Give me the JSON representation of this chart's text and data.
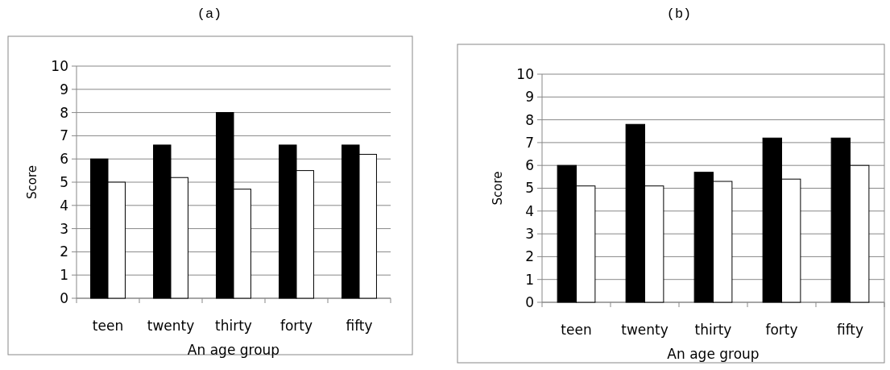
{
  "chart_data": [
    {
      "type": "bar",
      "title": "(a)",
      "xlabel": "An age group",
      "ylabel": "Score",
      "categories": [
        "teen",
        "twenty",
        "thirty",
        "forty",
        "fifty"
      ],
      "series": [
        {
          "color": "#000000",
          "values": [
            6,
            6.6,
            8,
            6.6,
            6.6
          ]
        },
        {
          "color": "#ffffff",
          "values": [
            5,
            5.2,
            4.7,
            5.5,
            6.2
          ]
        }
      ],
      "ylim": [
        0,
        10
      ],
      "yticks": [
        0,
        1,
        2,
        3,
        4,
        5,
        6,
        7,
        8,
        9,
        10
      ],
      "grid": "y"
    },
    {
      "type": "bar",
      "title": "(b)",
      "xlabel": "An age group",
      "ylabel": "Score",
      "categories": [
        "teen",
        "twenty",
        "thirty",
        "forty",
        "fifty"
      ],
      "series": [
        {
          "color": "#000000",
          "values": [
            6,
            7.8,
            5.7,
            7.2,
            7.2
          ]
        },
        {
          "color": "#ffffff",
          "values": [
            5.1,
            5.1,
            5.3,
            5.4,
            6
          ]
        }
      ],
      "ylim": [
        0,
        10
      ],
      "yticks": [
        0,
        1,
        2,
        3,
        4,
        5,
        6,
        7,
        8,
        9,
        10
      ],
      "grid": "y"
    }
  ]
}
